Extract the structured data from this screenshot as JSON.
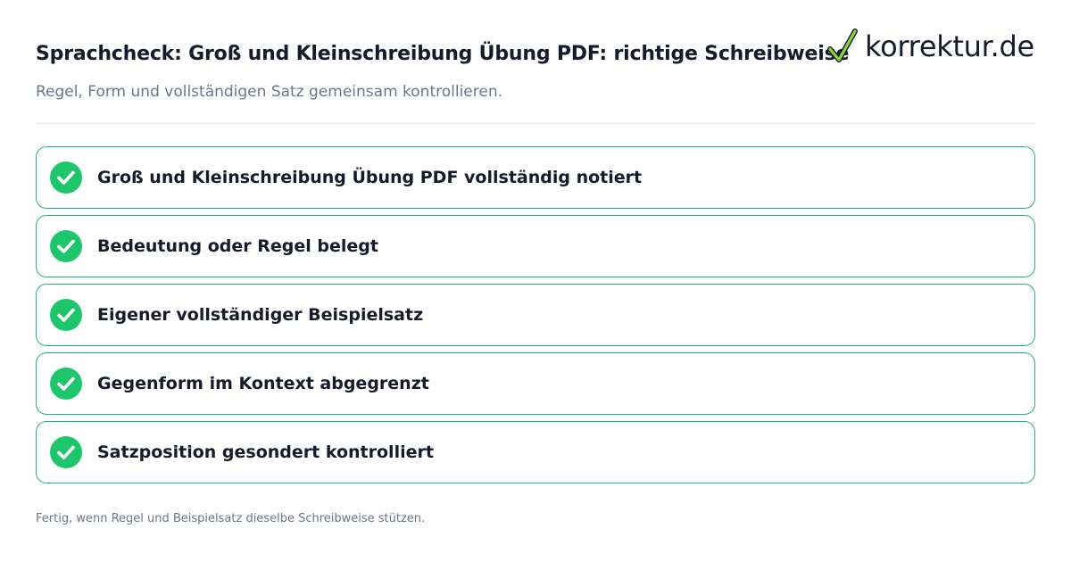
{
  "header": {
    "title": "Sprachcheck: Groß und Kleinschreibung Übung PDF: richtige Schreibweise",
    "subtitle": "Regel, Form und vollständigen Satz gemeinsam kontrollieren."
  },
  "logo": {
    "icon": "checkmark-logo-icon",
    "text": "korrektur.de"
  },
  "checklist": {
    "items": [
      {
        "label": "Groß und Kleinschreibung Übung PDF vollständig notiert",
        "icon": "check-circle-icon",
        "checked": true
      },
      {
        "label": "Bedeutung oder Regel belegt",
        "icon": "check-circle-icon",
        "checked": true
      },
      {
        "label": "Eigener vollständiger Beispielsatz",
        "icon": "check-circle-icon",
        "checked": true
      },
      {
        "label": "Gegenform im Kontext abgegrenzt",
        "icon": "check-circle-icon",
        "checked": true
      },
      {
        "label": "Satzposition gesondert kontrolliert",
        "icon": "check-circle-icon",
        "checked": true
      }
    ]
  },
  "footer": {
    "note": "Fertig, wenn Regel und Beispielsatz dieselbe Schreibweise stützen."
  },
  "colors": {
    "accent_green": "#22b573",
    "check_fill": "#1ec66b",
    "text_dark": "#151b2c",
    "text_muted": "#6b7689",
    "divider": "#e6e9ee"
  }
}
